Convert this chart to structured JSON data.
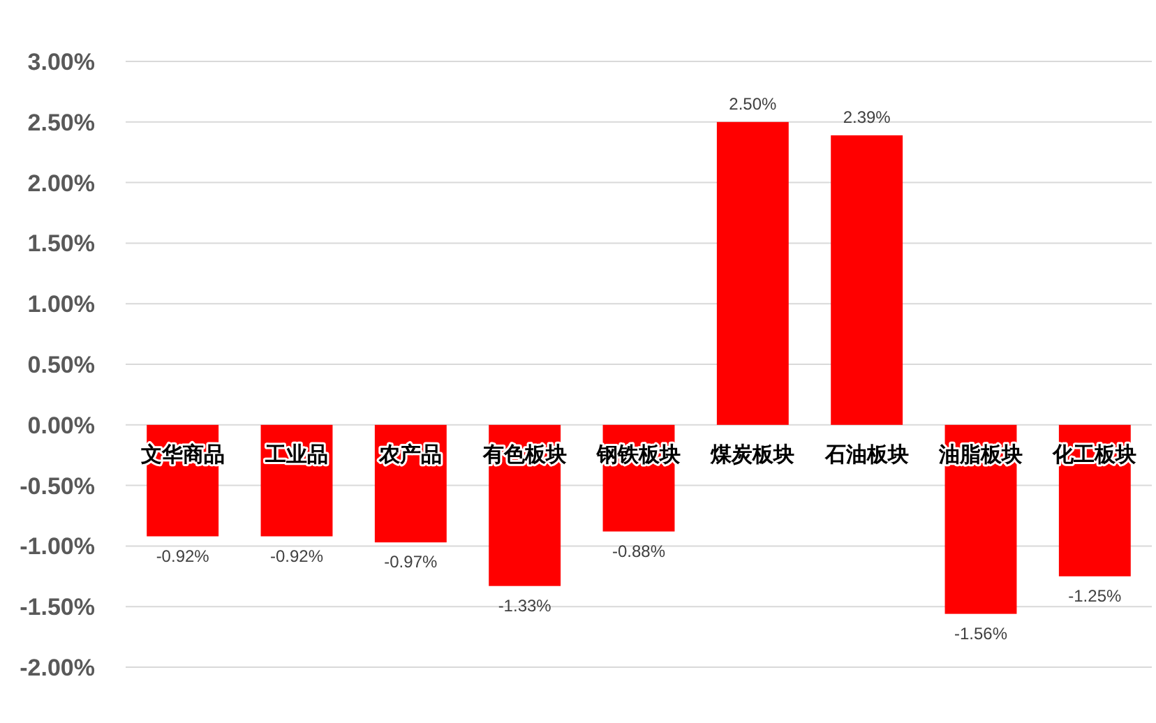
{
  "chart_data": {
    "type": "bar",
    "categories": [
      "文华商品",
      "工业品",
      "农产品",
      "有色板块",
      "钢铁板块",
      "煤炭板块",
      "石油板块",
      "油脂板块",
      "化工板块"
    ],
    "values": [
      -0.92,
      -0.92,
      -0.97,
      -1.33,
      -0.88,
      2.5,
      2.39,
      -1.56,
      -1.25
    ],
    "value_labels": [
      "-0.92%",
      "-0.92%",
      "-0.97%",
      "-1.33%",
      "-0.88%",
      "2.50%",
      "2.39%",
      "-1.56%",
      "-1.25%"
    ],
    "color": "#ff0000",
    "ylim": [
      -2,
      3
    ],
    "yticks": [
      {
        "value": -2,
        "label": "-2.00%"
      },
      {
        "value": -1.5,
        "label": "-1.50%"
      },
      {
        "value": -1,
        "label": "-1.00%"
      },
      {
        "value": -0.5,
        "label": "-0.50%"
      },
      {
        "value": 0,
        "label": "0.00%"
      },
      {
        "value": 0.5,
        "label": "0.50%"
      },
      {
        "value": 1,
        "label": "1.00%"
      },
      {
        "value": 1.5,
        "label": "1.50%"
      },
      {
        "value": 2,
        "label": "2.00%"
      },
      {
        "value": 2.5,
        "label": "2.50%"
      },
      {
        "value": 3,
        "label": "3.00%"
      }
    ],
    "grid": "y"
  }
}
